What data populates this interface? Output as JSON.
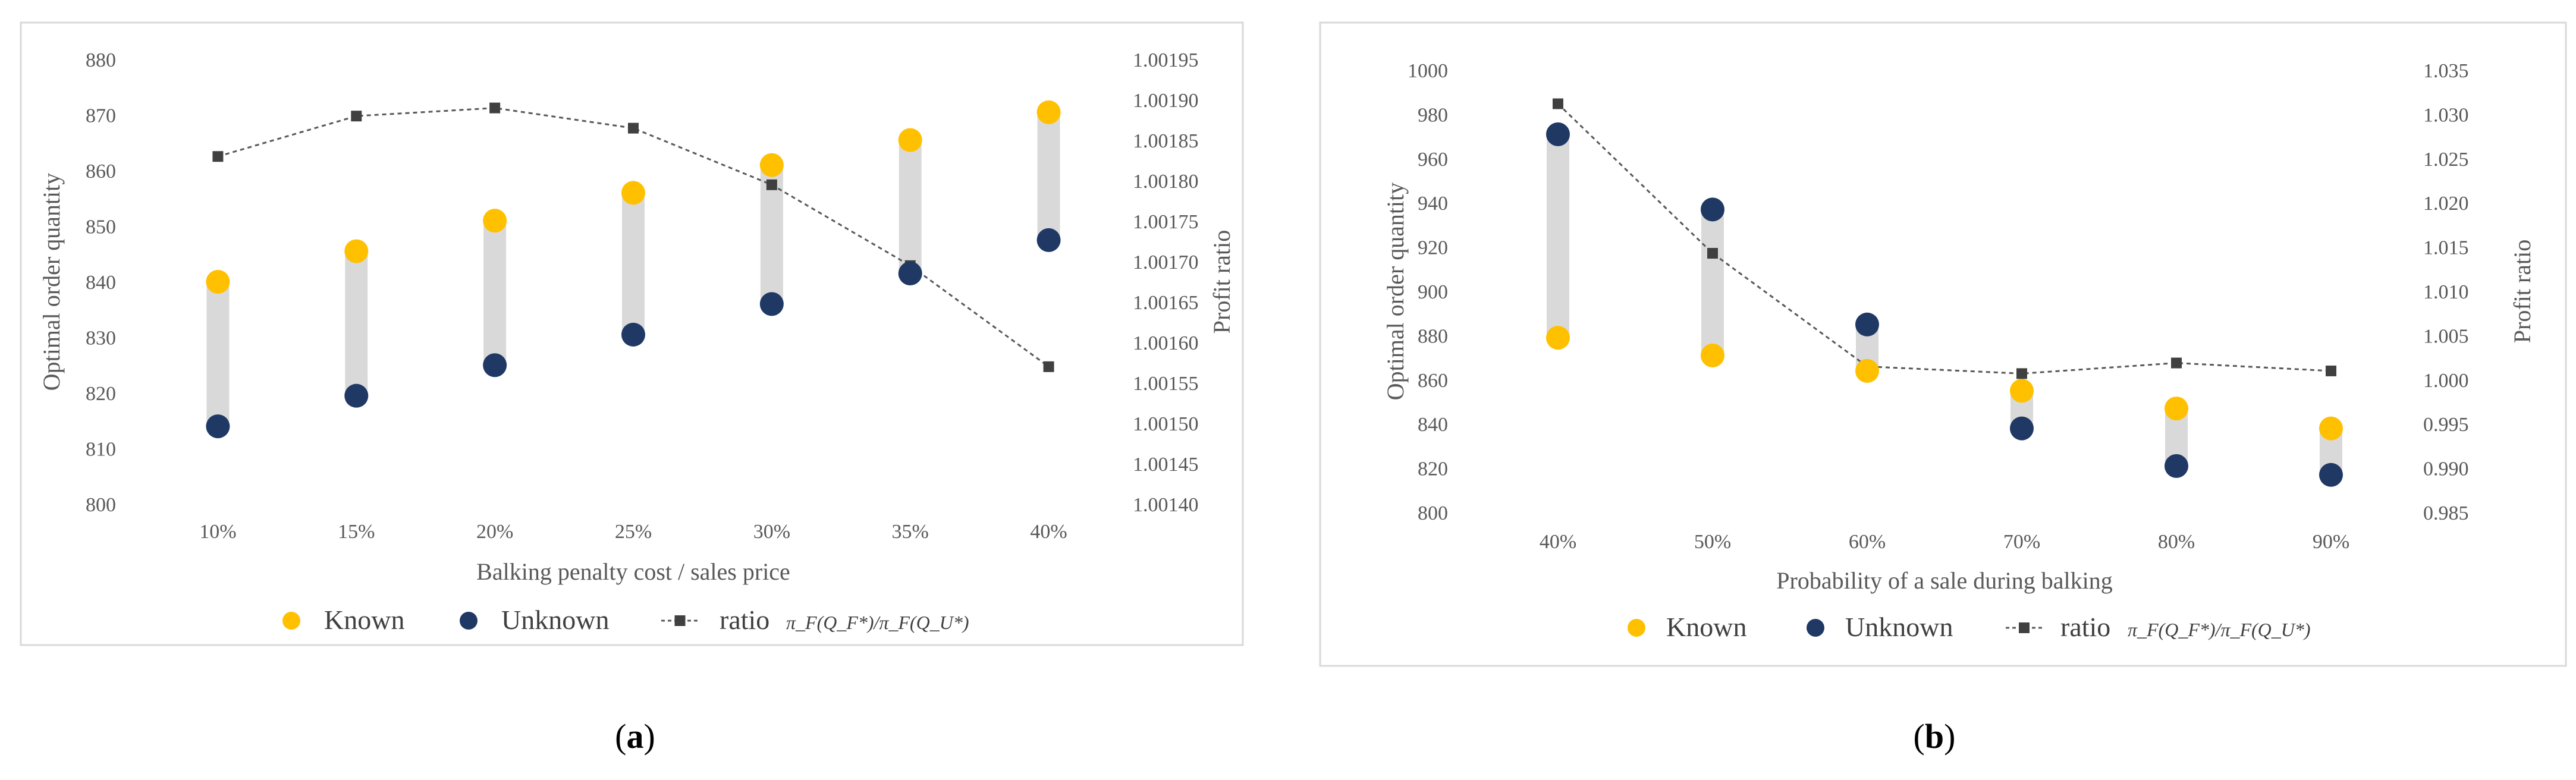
{
  "chart_data": [
    {
      "panel": "a",
      "type": "scatter",
      "categories": [
        "10%",
        "15%",
        "20%",
        "25%",
        "30%",
        "35%",
        "40%"
      ],
      "xlabel": "Balking penalty cost / sales price",
      "ylabel": "Optimal order quantity",
      "y2label": "Profit ratio",
      "ylim": [
        800,
        880
      ],
      "yticks": [
        "800",
        "810",
        "820",
        "830",
        "840",
        "850",
        "860",
        "870",
        "880"
      ],
      "y2lim": [
        1.0014,
        1.00195
      ],
      "y2ticks": [
        "1.00140",
        "1.00145",
        "1.00150",
        "1.00155",
        "1.00160",
        "1.00165",
        "1.00170",
        "1.00175",
        "1.00180",
        "1.00185",
        "1.00190",
        "1.00195"
      ],
      "series": [
        {
          "name": "Known",
          "color": "#FFC000",
          "marker": "circle",
          "axis": "left",
          "values": [
            840,
            845.5,
            851,
            856,
            861,
            865.5,
            870.5
          ]
        },
        {
          "name": "Unknown",
          "color": "#1F3864",
          "marker": "circle",
          "axis": "left",
          "values": [
            814,
            819.5,
            825,
            830.5,
            836,
            841.5,
            847.5
          ]
        },
        {
          "name": "ratio",
          "color": "#595959",
          "marker": "square",
          "line": "dashed",
          "axis": "right",
          "values": [
            1.00183,
            1.00188,
            1.00189,
            1.001865,
            1.001795,
            1.001695,
            1.00157
          ]
        }
      ],
      "legend": [
        {
          "label": "Known",
          "color": "#FFC000",
          "kind": "circle"
        },
        {
          "label": "Unknown",
          "color": "#1F3864",
          "kind": "circle"
        },
        {
          "label": "ratio",
          "sub": "π_F(Q_F*)/π_F(Q_U*)",
          "color": "#404040",
          "kind": "line-square"
        }
      ],
      "grid": false,
      "range_bars": true,
      "panel_label": {
        "open": "(",
        "letter": "a",
        "close": ")"
      }
    },
    {
      "panel": "b",
      "type": "scatter",
      "categories": [
        "40%",
        "50%",
        "60%",
        "70%",
        "80%",
        "90%"
      ],
      "xlabel": "Probability of a sale during balking",
      "ylabel": "Optimal order quantity",
      "y2label": "Profit ratio",
      "ylim": [
        800,
        1000
      ],
      "yticks": [
        "800",
        "820",
        "840",
        "860",
        "880",
        "900",
        "920",
        "940",
        "960",
        "980",
        "1000"
      ],
      "y2lim": [
        0.985,
        1.035
      ],
      "y2ticks": [
        "0.985",
        "0.990",
        "0.995",
        "1.000",
        "1.005",
        "1.010",
        "1.015",
        "1.020",
        "1.025",
        "1.030",
        "1.035"
      ],
      "series": [
        {
          "name": "Known",
          "color": "#FFC000",
          "marker": "circle",
          "axis": "left",
          "values": [
            879,
            871,
            864,
            855,
            847,
            838
          ]
        },
        {
          "name": "Unknown",
          "color": "#1F3864",
          "marker": "circle",
          "axis": "left",
          "values": [
            971,
            937,
            885,
            838,
            821,
            817
          ]
        },
        {
          "name": "ratio",
          "color": "#595959",
          "marker": "square",
          "line": "dashed",
          "axis": "right",
          "values": [
            1.0312,
            1.0143,
            1.0015,
            1.0007,
            1.0019,
            1.001
          ]
        }
      ],
      "legend": [
        {
          "label": "Known",
          "color": "#FFC000",
          "kind": "circle"
        },
        {
          "label": "Unknown",
          "color": "#1F3864",
          "kind": "circle"
        },
        {
          "label": "ratio",
          "sub": "π_F(Q_F*)/π_F(Q_U*)",
          "color": "#404040",
          "kind": "line-square"
        }
      ],
      "grid": false,
      "range_bars": true,
      "panel_label": {
        "open": "(",
        "letter": "b",
        "close": ")"
      }
    }
  ]
}
